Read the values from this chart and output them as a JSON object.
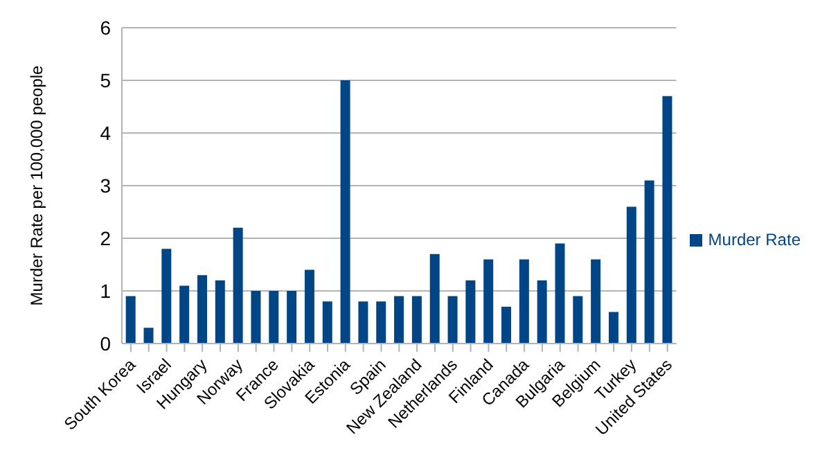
{
  "chart_data": {
    "type": "bar",
    "ylabel": "Murder Rate per 100,000 people",
    "categories": [
      "South Korea",
      null,
      "Israel",
      null,
      "Hungary",
      null,
      "Norway",
      null,
      "France",
      null,
      "Slovakia",
      null,
      "Estonia",
      null,
      "Spain",
      null,
      "New Zealand",
      null,
      "Netherlands",
      null,
      "Finland",
      null,
      "Canada",
      null,
      "Bulgaria",
      null,
      "Belgium",
      null,
      "Turkey",
      null,
      "United States"
    ],
    "series": [
      {
        "name": "Murder Rate",
        "color": "#004586",
        "values": [
          0.9,
          0.3,
          1.8,
          1.1,
          1.3,
          1.2,
          2.2,
          1.0,
          1.0,
          1.0,
          1.4,
          0.8,
          5.0,
          0.8,
          0.8,
          0.9,
          0.9,
          1.7,
          0.9,
          1.2,
          1.6,
          0.7,
          1.6,
          1.2,
          1.9,
          0.9,
          1.6,
          0.6,
          2.6,
          3.1,
          4.7
        ]
      }
    ],
    "ylim": [
      0,
      6
    ],
    "yticks": [
      0,
      1,
      2,
      3,
      4,
      5,
      6
    ],
    "grid": "y",
    "legend": "right"
  }
}
